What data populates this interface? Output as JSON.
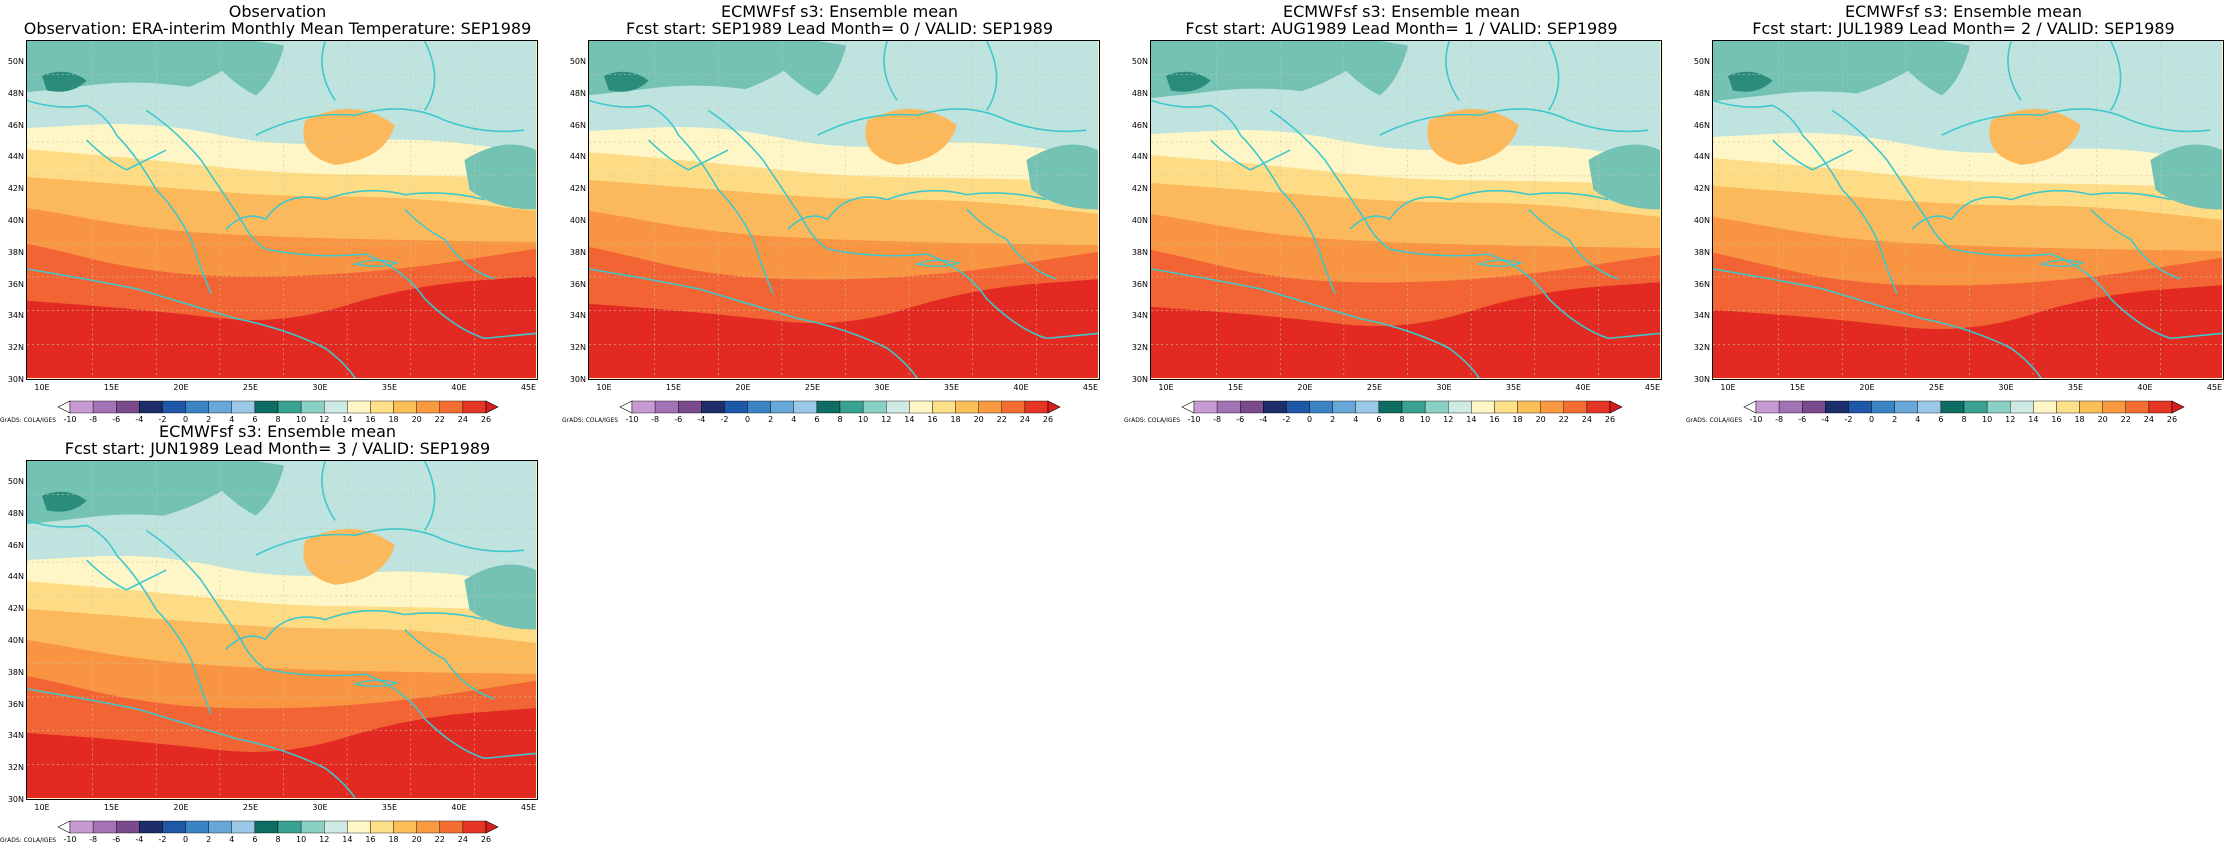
{
  "panels": [
    {
      "title_line1": "Observation",
      "title_line2": "Observation: ERA-interim Monthly Mean Temperature: SEP1989"
    },
    {
      "title_line1": "ECMWFsf s3: Ensemble mean",
      "title_line2": "Fcst start: SEP1989  Lead Month= 0 / VALID: SEP1989"
    },
    {
      "title_line1": "ECMWFsf s3: Ensemble mean",
      "title_line2": "Fcst start: AUG1989  Lead Month= 1 / VALID: SEP1989"
    },
    {
      "title_line1": "ECMWFsf s3: Ensemble mean",
      "title_line2": "Fcst start: JUL1989  Lead Month= 2 / VALID: SEP1989"
    },
    {
      "title_line1": "ECMWFsf s3: Ensemble mean",
      "title_line2": "Fcst start: JUN1989  Lead Month= 3 / VALID: SEP1989"
    }
  ],
  "lat_labels": [
    "50N",
    "48N",
    "46N",
    "44N",
    "42N",
    "40N",
    "38N",
    "36N",
    "34N",
    "32N",
    "30N"
  ],
  "lon_labels": [
    "10E",
    "15E",
    "20E",
    "25E",
    "30E",
    "35E",
    "40E",
    "45E"
  ],
  "colorbar": {
    "levels": [
      "-10",
      "-8",
      "-6",
      "-4",
      "-2",
      "0",
      "2",
      "4",
      "6",
      "8",
      "10",
      "12",
      "14",
      "16",
      "18",
      "20",
      "22",
      "24",
      "26"
    ],
    "colors": [
      "#e4c8ec",
      "#c89ad2",
      "#a373b5",
      "#7a4a8c",
      "#1c2d6a",
      "#1f58a8",
      "#3a84c4",
      "#68a8d8",
      "#9ac8e6",
      "#0e6e64",
      "#3aa292",
      "#8ad0c4",
      "#cdeae4",
      "#fff7c8",
      "#fee088",
      "#fcbf58",
      "#f99a40",
      "#f46d33",
      "#e43525",
      "#d71e1e"
    ],
    "low_color": "#ffffff",
    "high_color": "#d71e1e"
  },
  "grads_label": "GrADS: COLA/IGES",
  "band_colors": {
    "c10": "#2c8c7c",
    "c12": "#74c2b4",
    "c14": "#bfe4e0",
    "c16": "#fff6c7",
    "c18": "#fedc85",
    "c20": "#fcb95c",
    "c22": "#f89442",
    "c24": "#f26434",
    "c26": "#e22a22",
    "coast": "#3ec8cc",
    "grid": "#c8c8a0"
  }
}
